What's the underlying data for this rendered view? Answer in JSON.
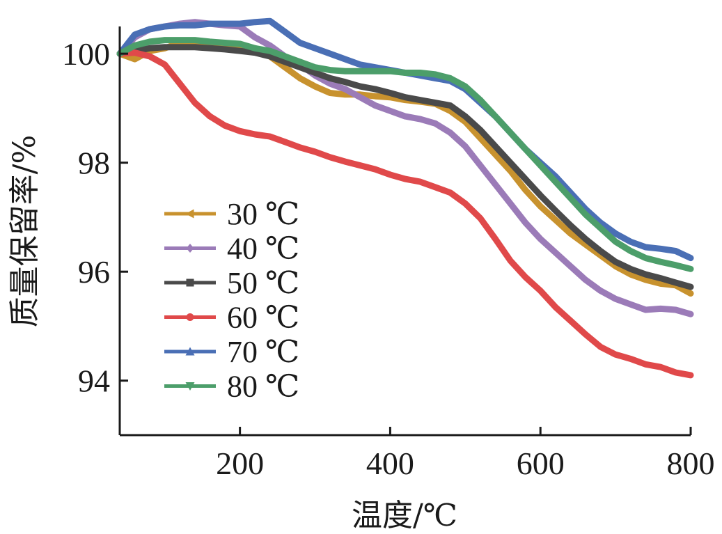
{
  "chart_data": {
    "type": "line",
    "xlabel": "温度/℃",
    "ylabel": "质量保留率/%",
    "xlim": [
      40,
      800
    ],
    "ylim": [
      93,
      100.5
    ],
    "xticks": [
      200,
      400,
      600,
      800
    ],
    "yticks": [
      94,
      96,
      98,
      100
    ],
    "grid": false,
    "legend_position": "left-middle",
    "series": [
      {
        "name": "30 ℃",
        "color": "#C8922E",
        "marker": "triangle-left",
        "x": [
          40,
          60,
          80,
          100,
          120,
          140,
          160,
          180,
          200,
          220,
          240,
          260,
          280,
          300,
          320,
          340,
          360,
          380,
          400,
          420,
          440,
          460,
          480,
          500,
          520,
          540,
          560,
          580,
          600,
          620,
          640,
          660,
          680,
          700,
          720,
          740,
          760,
          780,
          800
        ],
        "values": [
          100.0,
          99.9,
          100.05,
          100.1,
          100.2,
          100.2,
          100.2,
          100.15,
          100.15,
          100.1,
          99.95,
          99.75,
          99.55,
          99.4,
          99.28,
          99.25,
          99.25,
          99.22,
          99.2,
          99.15,
          99.12,
          99.08,
          98.95,
          98.75,
          98.45,
          98.15,
          97.85,
          97.5,
          97.2,
          96.95,
          96.7,
          96.5,
          96.3,
          96.1,
          95.95,
          95.85,
          95.78,
          95.75,
          95.6
        ]
      },
      {
        "name": "40 ℃",
        "color": "#9B7BB8",
        "marker": "diamond",
        "x": [
          40,
          60,
          80,
          100,
          120,
          140,
          160,
          180,
          200,
          220,
          240,
          260,
          280,
          300,
          320,
          340,
          360,
          380,
          400,
          420,
          440,
          460,
          480,
          500,
          520,
          540,
          560,
          580,
          600,
          620,
          640,
          660,
          680,
          700,
          720,
          740,
          760,
          780,
          800
        ],
        "values": [
          100.0,
          100.3,
          100.45,
          100.5,
          100.55,
          100.58,
          100.55,
          100.52,
          100.5,
          100.3,
          100.15,
          99.95,
          99.8,
          99.6,
          99.45,
          99.35,
          99.2,
          99.05,
          98.95,
          98.85,
          98.8,
          98.72,
          98.55,
          98.3,
          97.95,
          97.6,
          97.25,
          96.9,
          96.6,
          96.35,
          96.1,
          95.85,
          95.65,
          95.5,
          95.4,
          95.3,
          95.32,
          95.3,
          95.22
        ]
      },
      {
        "name": "50 ℃",
        "color": "#4A4A4A",
        "marker": "square",
        "x": [
          40,
          60,
          80,
          100,
          120,
          140,
          160,
          180,
          200,
          220,
          240,
          260,
          280,
          300,
          320,
          340,
          360,
          380,
          400,
          420,
          440,
          460,
          480,
          500,
          520,
          540,
          560,
          580,
          600,
          620,
          640,
          660,
          680,
          700,
          720,
          740,
          760,
          780,
          800
        ],
        "values": [
          100.0,
          100.05,
          100.1,
          100.12,
          100.12,
          100.12,
          100.1,
          100.08,
          100.05,
          100.02,
          99.95,
          99.85,
          99.75,
          99.65,
          99.55,
          99.48,
          99.4,
          99.35,
          99.28,
          99.2,
          99.15,
          99.1,
          99.05,
          98.85,
          98.6,
          98.3,
          98.0,
          97.7,
          97.4,
          97.12,
          96.85,
          96.6,
          96.38,
          96.18,
          96.05,
          95.95,
          95.88,
          95.8,
          95.72
        ]
      },
      {
        "name": "60 ℃",
        "color": "#E0494A",
        "marker": "circle",
        "x": [
          40,
          60,
          80,
          100,
          120,
          140,
          160,
          180,
          200,
          220,
          240,
          260,
          280,
          300,
          320,
          340,
          360,
          380,
          400,
          420,
          440,
          460,
          480,
          500,
          520,
          540,
          560,
          580,
          600,
          620,
          640,
          660,
          680,
          700,
          720,
          740,
          760,
          780,
          800
        ],
        "values": [
          100.0,
          100.02,
          99.95,
          99.8,
          99.45,
          99.1,
          98.85,
          98.68,
          98.58,
          98.52,
          98.48,
          98.38,
          98.28,
          98.2,
          98.1,
          98.02,
          97.95,
          97.88,
          97.78,
          97.7,
          97.65,
          97.55,
          97.45,
          97.25,
          96.98,
          96.6,
          96.2,
          95.9,
          95.65,
          95.35,
          95.1,
          94.85,
          94.62,
          94.48,
          94.4,
          94.3,
          94.25,
          94.15,
          94.1
        ]
      },
      {
        "name": "70 ℃",
        "color": "#4A6FB5",
        "marker": "triangle-up",
        "x": [
          40,
          60,
          80,
          100,
          120,
          140,
          160,
          180,
          200,
          220,
          240,
          260,
          280,
          300,
          320,
          340,
          360,
          380,
          400,
          420,
          440,
          460,
          480,
          500,
          520,
          540,
          560,
          580,
          600,
          620,
          640,
          660,
          680,
          700,
          720,
          740,
          760,
          780,
          800
        ],
        "values": [
          100.0,
          100.35,
          100.45,
          100.5,
          100.52,
          100.52,
          100.55,
          100.55,
          100.55,
          100.58,
          100.6,
          100.4,
          100.2,
          100.1,
          100.0,
          99.9,
          99.8,
          99.75,
          99.7,
          99.65,
          99.6,
          99.55,
          99.5,
          99.35,
          99.1,
          98.85,
          98.55,
          98.25,
          98.0,
          97.75,
          97.45,
          97.15,
          96.9,
          96.7,
          96.55,
          96.45,
          96.42,
          96.38,
          96.25
        ]
      },
      {
        "name": "80 ℃",
        "color": "#4C9E6A",
        "marker": "triangle-down",
        "x": [
          40,
          60,
          80,
          100,
          120,
          140,
          160,
          180,
          200,
          220,
          240,
          260,
          280,
          300,
          320,
          340,
          360,
          380,
          400,
          420,
          440,
          460,
          480,
          500,
          520,
          540,
          560,
          580,
          600,
          620,
          640,
          660,
          680,
          700,
          720,
          740,
          760,
          780,
          800
        ],
        "values": [
          100.0,
          100.15,
          100.22,
          100.25,
          100.25,
          100.25,
          100.22,
          100.2,
          100.18,
          100.1,
          100.05,
          99.95,
          99.85,
          99.75,
          99.7,
          99.68,
          99.68,
          99.68,
          99.68,
          99.65,
          99.65,
          99.62,
          99.55,
          99.4,
          99.15,
          98.85,
          98.55,
          98.25,
          97.95,
          97.65,
          97.35,
          97.05,
          96.8,
          96.55,
          96.38,
          96.25,
          96.18,
          96.12,
          96.05
        ]
      }
    ]
  }
}
